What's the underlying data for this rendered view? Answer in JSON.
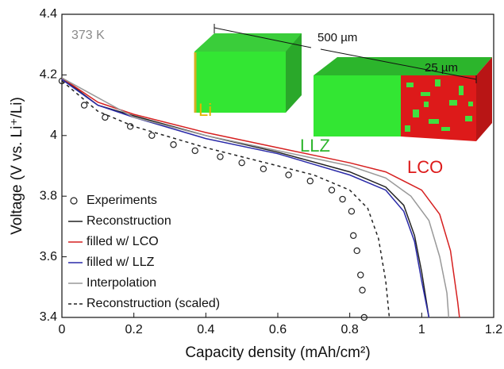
{
  "chart_data": {
    "type": "line",
    "xlabel": "Capacity density (mAh/cm²)",
    "ylabel": "Voltage (V vs. Li⁺/Li)",
    "xlim": [
      0,
      1.2
    ],
    "ylim": [
      3.4,
      4.4
    ],
    "xticks": [
      0,
      0.2,
      0.4,
      0.6,
      0.8,
      1,
      1.2
    ],
    "yticks": [
      3.4,
      3.6,
      3.8,
      4,
      4.2,
      4.4
    ],
    "legend": "lower left",
    "annotations": [
      "373 K",
      "500 µm",
      "25 µm",
      "Li",
      "LLZ",
      "LCO"
    ],
    "series": [
      {
        "name": "Experiments",
        "type": "scatter",
        "color": "#222222",
        "x": [
          0,
          0.062,
          0.12,
          0.19,
          0.25,
          0.31,
          0.37,
          0.44,
          0.5,
          0.56,
          0.63,
          0.69,
          0.75,
          0.78,
          0.805,
          0.81,
          0.82,
          0.83,
          0.835,
          0.84
        ],
        "values": [
          4.18,
          4.1,
          4.06,
          4.03,
          4.0,
          3.97,
          3.95,
          3.93,
          3.91,
          3.89,
          3.87,
          3.85,
          3.82,
          3.79,
          3.75,
          3.67,
          3.62,
          3.54,
          3.49,
          3.4
        ]
      },
      {
        "name": "Reconstruction",
        "color": "#222222",
        "dash": false,
        "x": [
          0,
          0.1,
          0.2,
          0.4,
          0.6,
          0.8,
          0.9,
          0.95,
          0.98,
          1.0,
          1.02
        ],
        "values": [
          4.19,
          4.1,
          4.065,
          4.0,
          3.945,
          3.88,
          3.83,
          3.77,
          3.67,
          3.55,
          3.4
        ]
      },
      {
        "name": "filled w/ LCO",
        "color": "#d62020",
        "dash": false,
        "x": [
          0,
          0.1,
          0.2,
          0.4,
          0.6,
          0.8,
          0.9,
          1.0,
          1.05,
          1.08,
          1.1,
          1.105
        ],
        "values": [
          4.19,
          4.11,
          4.07,
          4.01,
          3.96,
          3.91,
          3.88,
          3.82,
          3.74,
          3.62,
          3.45,
          3.4
        ]
      },
      {
        "name": "filled w/ LLZ",
        "color": "#2a2aa8",
        "dash": false,
        "x": [
          0,
          0.1,
          0.2,
          0.4,
          0.6,
          0.8,
          0.9,
          0.95,
          0.98,
          1.0,
          1.02
        ],
        "values": [
          4.185,
          4.1,
          4.06,
          3.99,
          3.94,
          3.87,
          3.82,
          3.75,
          3.65,
          3.52,
          3.4
        ]
      },
      {
        "name": "Interpolation",
        "color": "#999999",
        "dash": false,
        "x": [
          0,
          0.2,
          0.4,
          0.6,
          0.8,
          0.9,
          0.97,
          1.02,
          1.05,
          1.07,
          1.075
        ],
        "values": [
          4.19,
          4.06,
          4.0,
          3.95,
          3.9,
          3.86,
          3.8,
          3.72,
          3.6,
          3.48,
          3.4
        ]
      },
      {
        "name": "Reconstruction (scaled)",
        "color": "#222222",
        "dash": true,
        "x": [
          0,
          0.1,
          0.2,
          0.4,
          0.6,
          0.7,
          0.8,
          0.85,
          0.88,
          0.9,
          0.91
        ],
        "values": [
          4.18,
          4.08,
          4.03,
          3.96,
          3.9,
          3.87,
          3.82,
          3.76,
          3.66,
          3.52,
          3.4
        ]
      }
    ]
  }
}
